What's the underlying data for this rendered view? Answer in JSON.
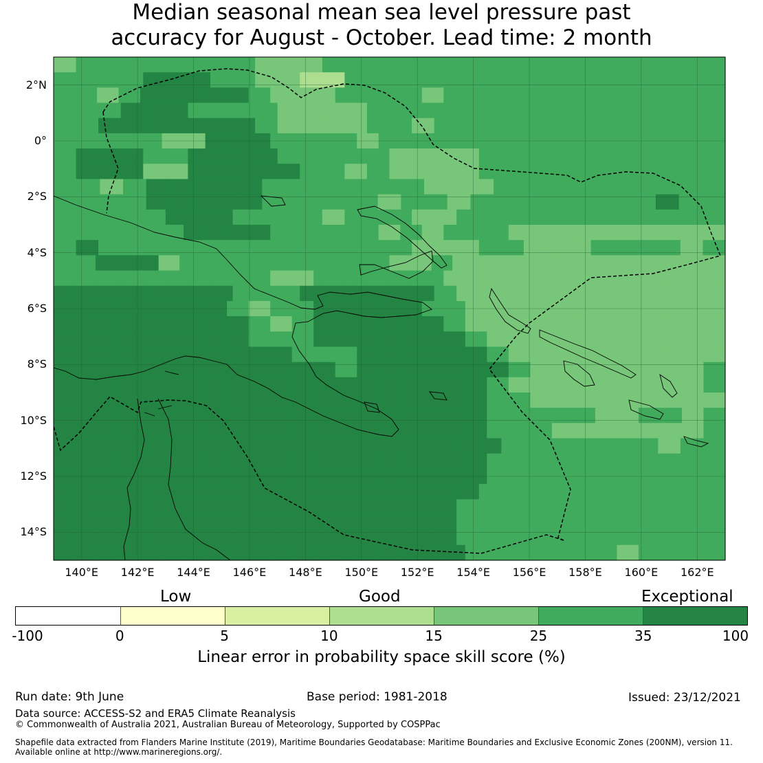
{
  "title": {
    "line1": "Median seasonal mean sea level pressure past",
    "line2": "accuracy for August - October. Lead time: 2 month"
  },
  "map": {
    "lat_labels": [
      "2°N",
      "0°",
      "2°S",
      "4°S",
      "6°S",
      "8°S",
      "10°S",
      "12°S",
      "14°S"
    ],
    "lon_labels": [
      "140°E",
      "142°E",
      "144°E",
      "146°E",
      "148°E",
      "150°E",
      "152°E",
      "154°E",
      "156°E",
      "158°E",
      "160°E",
      "162°E"
    ],
    "lat_range": [
      -15,
      3
    ],
    "lon_range": [
      139,
      163
    ],
    "gridlines": true,
    "grid_rows": [
      "bccccccccbbbcccccccccccccccccc",
      "ccccdddccbbaaccccccccccccccccc",
      "ccbcdddddcbbbccccbccccccccccccc",
      "cccdddccccbbbbcccccccccccccccc",
      "ccdddddddcbbbbccbccccccccccccc",
      "cccccbbdddccccbcccccccccccccccc",
      "cdddccddddcccccbbbbccccccccccc",
      "cdddbbdddddccbcbbbbccccccccccc",
      "ccbcdddddcccccccbbbcccccccccc",
      "ccccdddddcccccbccbccccccccdcc",
      "cccccdddccccbcccbbcccccccccccc",
      "ccccccddddcccccbcbcccbbbbbbbbbb",
      "cdccccccccccccccbbbccbbbccccbc",
      "ccdddbccccccccccbbcbbbbbbbbbbbbb",
      "ccccccccccbbccccccbbbbbbbbbbbbb",
      "ddddddddcccddddddcbbbbbbbbbbbb",
      "ddddddddcbccdddddccbbbbbbbbbbbb",
      "dddddddddcbcddddddcbbbbbbbbbbbb",
      "dddddddddcccdddddddcbbbbbbbbbbb",
      "dddddddddddcccddddddcbbbbbbbbbb",
      "dddddddddddddcdddddddcbbbbbbbbc",
      "ddddddddddddddddddddcbbbbbbbbbc",
      "ddddddddddddddddddddccbbbbbbbbb",
      "ddddddddddddddddddddcccccbbccbc",
      "ddddddddddddddddddddcccbbbbbbbc",
      "ddddddddddddddddddddcccccccbcc",
      "ddddddddddddddddddddccccccccccc",
      "ddddddddddddddddddddccccccccccc",
      "dddddddddddddddddddccccccccccc",
      "ddddddddddddddddddcccccccccccc",
      "ddddddddddddddddddcccccccccccc",
      "ddddddddddddddddddcccccccccccc",
      "dddddddddddddddddddcccccccbcccc"
    ]
  },
  "colorbar": {
    "categories": [
      "Low",
      "Good",
      "Exceptional"
    ],
    "ticks": [
      "-100",
      "0",
      "5",
      "10",
      "15",
      "25",
      "35",
      "100"
    ],
    "colors": [
      "#ffffff",
      "#ffffcc",
      "#d9f0a3",
      "#addd8e",
      "#78c679",
      "#41ab5d",
      "#238443"
    ],
    "title": "Linear error in probability space skill score (%)"
  },
  "footer": {
    "run_date": "Run date: 9th June",
    "base_period": "Base period: 1981-2018",
    "issued": "Issued: 23/12/2021",
    "data_source": "Data source: ACCESS-S2 and ERA5 Climate Reanalysis",
    "copyright": "© Commonwealth of Australia 2021, Australian Bureau of Meteorology, Supported by COSPPac",
    "shapefile_line1": "Shapefile data extracted from Flanders Marine Institute (2019), Maritime Boundaries Geodatabase: Maritime Boundaries and Exclusive Economic Zones (200NM), version 11.",
    "shapefile_line2": "Available online at http://www.marineregions.org/."
  }
}
